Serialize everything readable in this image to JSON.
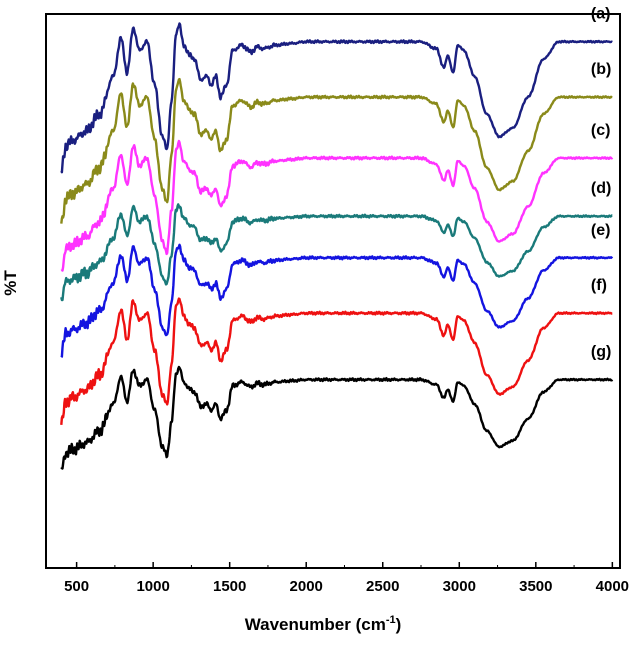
{
  "chart_data": {
    "type": "line",
    "title": "",
    "xlabel": "Wavenumber (cm",
    "xlabel_sup": "-1",
    "xlabel_suffix": ")",
    "ylabel": "%T",
    "xlim": [
      300,
      4050
    ],
    "x_ticks": [
      500,
      1000,
      1500,
      2000,
      2500,
      3000,
      3500,
      4000
    ],
    "y_ticks_shown": false,
    "grid": false,
    "legend": "inline labels at right",
    "x_anchors": [
      400,
      430,
      480,
      560,
      650,
      740,
      790,
      830,
      870,
      910,
      960,
      1010,
      1060,
      1090,
      1120,
      1150,
      1170,
      1200,
      1240,
      1270,
      1310,
      1350,
      1380,
      1410,
      1440,
      1480,
      1520,
      1580,
      1640,
      1680,
      1720,
      1800,
      1900,
      2000,
      2200,
      2400,
      2600,
      2750,
      2850,
      2900,
      2925,
      2960,
      2990,
      3030,
      3100,
      3180,
      3260,
      3350,
      3450,
      3550,
      3650,
      3750,
      3850,
      4000
    ],
    "base_shape": [
      -0.75,
      -0.6,
      -0.57,
      -0.52,
      -0.42,
      -0.2,
      0.02,
      -0.18,
      0.08,
      -0.05,
      0.0,
      -0.25,
      -0.55,
      -0.62,
      -0.35,
      0.05,
      0.1,
      -0.02,
      -0.08,
      -0.1,
      -0.22,
      -0.2,
      -0.25,
      -0.2,
      -0.32,
      -0.25,
      -0.05,
      -0.02,
      -0.06,
      -0.03,
      -0.04,
      -0.02,
      -0.01,
      0.0,
      0.0,
      0.0,
      0.0,
      0.0,
      -0.04,
      -0.15,
      -0.08,
      -0.18,
      -0.02,
      -0.05,
      -0.2,
      -0.42,
      -0.55,
      -0.5,
      -0.32,
      -0.1,
      0.0,
      0.0,
      0.0,
      0.0
    ],
    "series": [
      {
        "label": "(a)",
        "color": "#1a1f80",
        "baseline": 95,
        "depth": 82
      },
      {
        "label": "(b)",
        "color": "#8a8a1a",
        "baseline": 85,
        "depth": 80
      },
      {
        "label": "(c)",
        "color": "#ff33ff",
        "baseline": 74,
        "depth": 72
      },
      {
        "label": "(d)",
        "color": "#1a7a7a",
        "baseline": 63.5,
        "depth": 52
      },
      {
        "label": "(e)",
        "color": "#1414e0",
        "baseline": 56,
        "depth": 60
      },
      {
        "label": "(f)",
        "color": "#ee1111",
        "baseline": 46,
        "depth": 70
      },
      {
        "label": "(g)",
        "color": "#000000",
        "baseline": 34,
        "depth": 58
      }
    ]
  }
}
